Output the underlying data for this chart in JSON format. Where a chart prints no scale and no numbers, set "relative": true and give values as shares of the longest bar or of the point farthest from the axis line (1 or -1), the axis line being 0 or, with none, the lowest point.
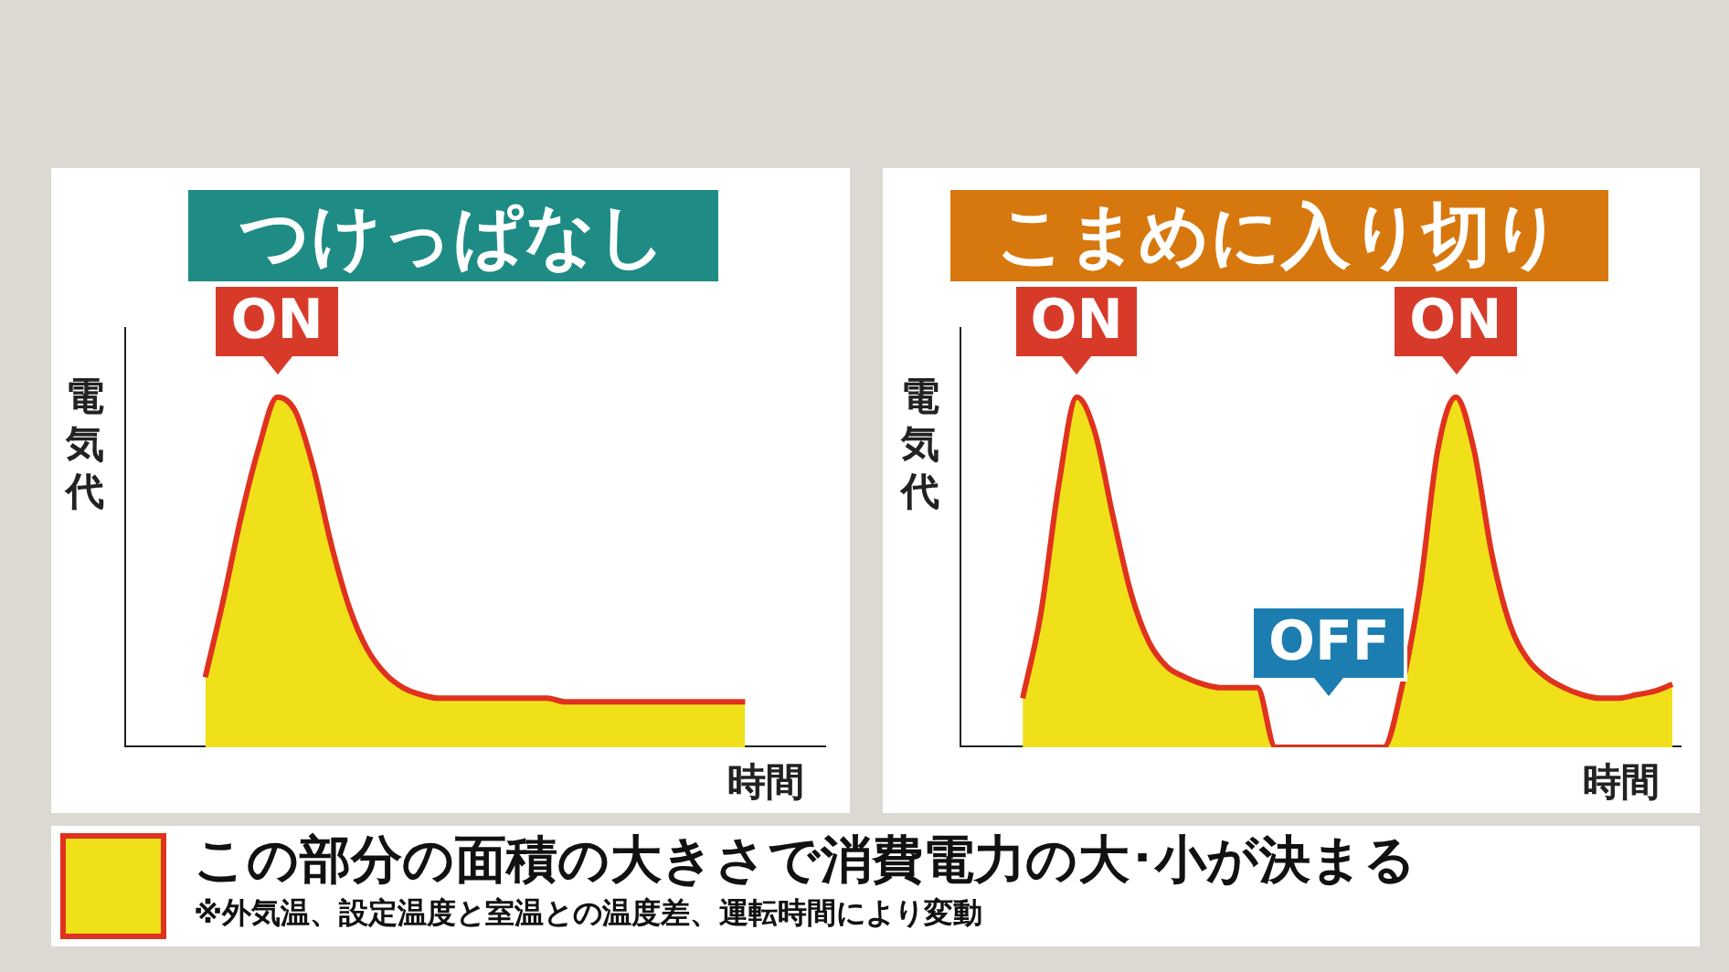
{
  "chart_data": [
    {
      "type": "area",
      "title": "つけっぱなし",
      "ylabel": "電気代",
      "xlabel": "時間",
      "relative": true,
      "grid": false,
      "legend": false,
      "categories": [
        null,
        null,
        null,
        null,
        null,
        null,
        null,
        null,
        null,
        null,
        null,
        null,
        null,
        null,
        null,
        null,
        null,
        null,
        null,
        null,
        null,
        null,
        null,
        null,
        null,
        null,
        null,
        null,
        null,
        null,
        null,
        null,
        null,
        null,
        null,
        null,
        null,
        null,
        null
      ],
      "series": [
        {
          "color": "#efe01a",
          "values": [
            null,
            null,
            null,
            null,
            0.2,
            0.42,
            0.66,
            0.86,
            1,
            0.96,
            0.8,
            0.58,
            0.4,
            0.28,
            0.21,
            0.17,
            0.15,
            0.14,
            0.14,
            0.14,
            0.14,
            0.14,
            0.14,
            0.14,
            0.13,
            0.13,
            0.13,
            0.13,
            0.13,
            0.13,
            0.13,
            0.13,
            0.13,
            0.13,
            0.13,
            null,
            null,
            null,
            null
          ]
        }
      ],
      "annotations": [
        {
          "text": "ON",
          "y": 1
        }
      ]
    },
    {
      "type": "area",
      "title": "こまめに入り切り",
      "ylabel": "電気代",
      "xlabel": "時間",
      "relative": true,
      "grid": false,
      "legend": false,
      "categories": [
        null,
        null,
        null,
        null,
        null,
        null,
        null,
        null,
        null,
        null,
        null,
        null,
        null,
        null,
        null,
        null,
        null,
        null,
        null,
        null,
        null,
        null,
        null,
        null,
        null,
        null,
        null,
        null,
        null,
        null,
        null,
        null,
        null,
        null,
        null,
        null,
        null,
        null,
        null,
        null
      ],
      "series": [
        {
          "color": "#efe01a",
          "values": [
            null,
            null,
            null,
            0.14,
            0.38,
            0.75,
            1,
            0.9,
            0.66,
            0.44,
            0.3,
            0.23,
            0.2,
            0.18,
            0.17,
            0.17,
            0.17,
            0,
            0,
            0,
            0,
            0,
            0,
            0,
            0.17,
            0.45,
            0.85,
            1,
            0.85,
            0.55,
            0.35,
            0.25,
            0.2,
            0.17,
            0.15,
            0.14,
            0.14,
            0.15,
            0.16,
            0.18
          ]
        }
      ],
      "annotations": [
        {
          "text": "ON",
          "y": 1
        },
        {
          "text": "OFF",
          "y": 0
        },
        {
          "text": "ON",
          "y": 1
        }
      ]
    },
    {
      "type": "other",
      "annotations": [
        "この部分の面積の大きさで消費電力の大･小が決まる",
        "※外気温、設定温度と室温との温度差、運転時間により変動"
      ]
    }
  ]
}
